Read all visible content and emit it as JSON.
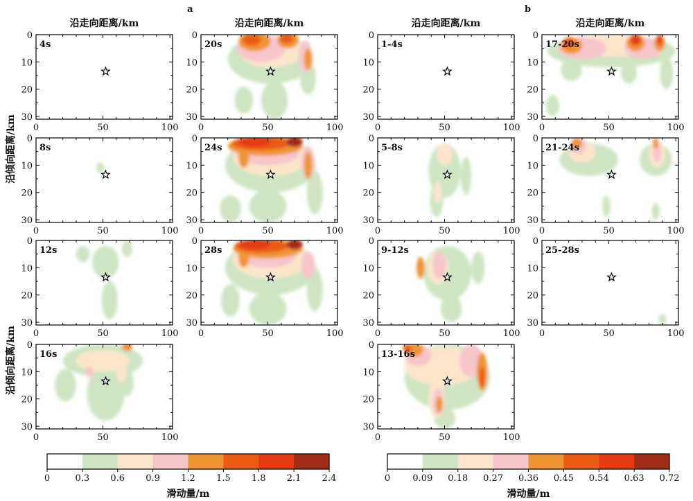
{
  "chart_data": {
    "type": "heatmap",
    "x_axis_label": "沿走向距离/km",
    "y_axis_label": "沿倾向距离/km",
    "colorbar_label": "滑动量/m",
    "xlim": [
      0,
      102
    ],
    "ylim": [
      0,
      31
    ],
    "y_inverted": true,
    "x_ticks": [
      "0",
      "50",
      "100"
    ],
    "y_ticks": [
      "0",
      "10",
      "20",
      "30"
    ],
    "hypocenter": {
      "x": 52,
      "y": 13.5,
      "symbol": "star"
    },
    "groups": [
      {
        "label": "a",
        "colorbar": {
          "ticks": [
            "0",
            "0.3",
            "0.6",
            "0.9",
            "1.2",
            "1.5",
            "1.8",
            "2.1",
            "2.4"
          ],
          "colors": [
            "#ffffff",
            "#cfe5c4",
            "#fbe6cc",
            "#f6c6cb",
            "#ef9434",
            "#ea5b16",
            "#e43c12",
            "#a02c1a"
          ]
        },
        "panels": [
          {
            "label": "4s",
            "patches": []
          },
          {
            "label": "8s",
            "patches": [
              {
                "x": 48,
                "y": 11,
                "rx": 3,
                "ry": 2,
                "level": 1
              }
            ]
          },
          {
            "label": "12s",
            "patches": [
              {
                "x": 52,
                "y": 8,
                "rx": 10,
                "ry": 6,
                "level": 1
              },
              {
                "x": 55,
                "y": 22,
                "rx": 6,
                "ry": 7,
                "level": 1
              },
              {
                "x": 35,
                "y": 5,
                "rx": 5,
                "ry": 3,
                "level": 1
              },
              {
                "x": 68,
                "y": 3,
                "rx": 4,
                "ry": 3,
                "level": 1
              }
            ]
          },
          {
            "label": "16s",
            "patches": [
              {
                "x": 50,
                "y": 6,
                "rx": 30,
                "ry": 6,
                "level": 1
              },
              {
                "x": 52,
                "y": 18,
                "rx": 14,
                "ry": 10,
                "level": 1
              },
              {
                "x": 22,
                "y": 15,
                "rx": 8,
                "ry": 6,
                "level": 1
              },
              {
                "x": 68,
                "y": 14,
                "rx": 5,
                "ry": 5,
                "level": 1
              },
              {
                "x": 50,
                "y": 6,
                "rx": 20,
                "ry": 4,
                "level": 2
              },
              {
                "x": 64,
                "y": 10,
                "rx": 4,
                "ry": 4,
                "level": 2
              },
              {
                "x": 40,
                "y": 10,
                "rx": 3,
                "ry": 2,
                "level": 3
              },
              {
                "x": 68,
                "y": 1,
                "rx": 4,
                "ry": 1.4,
                "level": 4
              }
            ]
          },
          {
            "label": "20s",
            "patches": [
              {
                "x": 52,
                "y": 9,
                "rx": 32,
                "ry": 9,
                "level": 1
              },
              {
                "x": 55,
                "y": 24,
                "rx": 10,
                "ry": 7,
                "level": 1
              },
              {
                "x": 32,
                "y": 24,
                "rx": 7,
                "ry": 5,
                "level": 1
              },
              {
                "x": 80,
                "y": 16,
                "rx": 6,
                "ry": 6,
                "level": 1
              },
              {
                "x": 52,
                "y": 6,
                "rx": 24,
                "ry": 6,
                "level": 2
              },
              {
                "x": 45,
                "y": 5,
                "rx": 18,
                "ry": 5,
                "level": 3
              },
              {
                "x": 78,
                "y": 8,
                "rx": 5,
                "ry": 6,
                "level": 3
              },
              {
                "x": 40,
                "y": 2.5,
                "rx": 12,
                "ry": 3.5,
                "level": 4
              },
              {
                "x": 65,
                "y": 2,
                "rx": 8,
                "ry": 3,
                "level": 4
              },
              {
                "x": 80,
                "y": 9,
                "rx": 3,
                "ry": 4,
                "level": 4
              },
              {
                "x": 38,
                "y": 2,
                "rx": 7,
                "ry": 2,
                "level": 5
              },
              {
                "x": 64,
                "y": 1.5,
                "rx": 5,
                "ry": 1.8,
                "level": 5
              }
            ]
          },
          {
            "label": "24s",
            "patches": [
              {
                "x": 52,
                "y": 10,
                "rx": 34,
                "ry": 10,
                "level": 1
              },
              {
                "x": 50,
                "y": 25,
                "rx": 14,
                "ry": 6,
                "level": 1
              },
              {
                "x": 22,
                "y": 26,
                "rx": 8,
                "ry": 5,
                "level": 1
              },
              {
                "x": 85,
                "y": 20,
                "rx": 6,
                "ry": 8,
                "level": 1
              },
              {
                "x": 52,
                "y": 7,
                "rx": 28,
                "ry": 7,
                "level": 2
              },
              {
                "x": 50,
                "y": 5,
                "rx": 24,
                "ry": 5,
                "level": 3
              },
              {
                "x": 80,
                "y": 9,
                "rx": 5,
                "ry": 6,
                "level": 3
              },
              {
                "x": 48,
                "y": 3,
                "rx": 28,
                "ry": 3.5,
                "level": 4
              },
              {
                "x": 32,
                "y": 7,
                "rx": 4,
                "ry": 4,
                "level": 4
              },
              {
                "x": 80,
                "y": 10,
                "rx": 3,
                "ry": 5,
                "level": 4
              },
              {
                "x": 45,
                "y": 2,
                "rx": 22,
                "ry": 2.5,
                "level": 5
              },
              {
                "x": 40,
                "y": 1.5,
                "rx": 12,
                "ry": 1.8,
                "level": 6
              },
              {
                "x": 70,
                "y": 1.5,
                "rx": 6,
                "ry": 1.8,
                "level": 7
              }
            ]
          },
          {
            "label": "28s",
            "patches": [
              {
                "x": 52,
                "y": 10,
                "rx": 34,
                "ry": 10,
                "level": 1
              },
              {
                "x": 50,
                "y": 25,
                "rx": 14,
                "ry": 6,
                "level": 1
              },
              {
                "x": 22,
                "y": 22,
                "rx": 7,
                "ry": 6,
                "level": 1
              },
              {
                "x": 85,
                "y": 18,
                "rx": 6,
                "ry": 8,
                "level": 1
              },
              {
                "x": 52,
                "y": 7,
                "rx": 28,
                "ry": 7,
                "level": 2
              },
              {
                "x": 50,
                "y": 5,
                "rx": 22,
                "ry": 5,
                "level": 3
              },
              {
                "x": 80,
                "y": 9,
                "rx": 5,
                "ry": 5,
                "level": 3
              },
              {
                "x": 50,
                "y": 3,
                "rx": 26,
                "ry": 3.5,
                "level": 4
              },
              {
                "x": 32,
                "y": 6,
                "rx": 4,
                "ry": 4,
                "level": 4
              },
              {
                "x": 45,
                "y": 2,
                "rx": 20,
                "ry": 2.5,
                "level": 5
              },
              {
                "x": 40,
                "y": 1.5,
                "rx": 12,
                "ry": 1.8,
                "level": 6
              },
              {
                "x": 70,
                "y": 1.5,
                "rx": 6,
                "ry": 1.8,
                "level": 7
              }
            ]
          }
        ]
      },
      {
        "label": "b",
        "colorbar": {
          "ticks": [
            "0",
            "0.09",
            "0.18",
            "0.27",
            "0.36",
            "0.45",
            "0.54",
            "0.63",
            "0.72"
          ],
          "colors": [
            "#ffffff",
            "#cfe5c4",
            "#fbe6cc",
            "#f6c6cb",
            "#ef9434",
            "#ea5b16",
            "#e43c12",
            "#a02c1a"
          ]
        },
        "panels": [
          {
            "label": "1-4s",
            "patches": []
          },
          {
            "label": "5-8s",
            "patches": [
              {
                "x": 50,
                "y": 12,
                "rx": 12,
                "ry": 10,
                "level": 1
              },
              {
                "x": 66,
                "y": 14,
                "rx": 4,
                "ry": 7,
                "level": 1
              },
              {
                "x": 44,
                "y": 23,
                "rx": 5,
                "ry": 6,
                "level": 1
              },
              {
                "x": 50,
                "y": 6,
                "rx": 6,
                "ry": 4,
                "level": 2
              },
              {
                "x": 45,
                "y": 20,
                "rx": 3,
                "ry": 4,
                "level": 2
              }
            ]
          },
          {
            "label": "9-12s",
            "patches": [
              {
                "x": 52,
                "y": 12,
                "rx": 18,
                "ry": 10,
                "level": 1
              },
              {
                "x": 55,
                "y": 25,
                "rx": 8,
                "ry": 5,
                "level": 1
              },
              {
                "x": 75,
                "y": 10,
                "rx": 5,
                "ry": 6,
                "level": 1
              },
              {
                "x": 45,
                "y": 10,
                "rx": 8,
                "ry": 6,
                "level": 2
              },
              {
                "x": 46,
                "y": 9,
                "rx": 5,
                "ry": 5,
                "level": 3
              },
              {
                "x": 32,
                "y": 10,
                "rx": 3,
                "ry": 4,
                "level": 4
              }
            ]
          },
          {
            "label": "13-16s",
            "patches": [
              {
                "x": 52,
                "y": 12,
                "rx": 32,
                "ry": 12,
                "level": 1
              },
              {
                "x": 50,
                "y": 27,
                "rx": 8,
                "ry": 4,
                "level": 1
              },
              {
                "x": 48,
                "y": 8,
                "rx": 28,
                "ry": 7,
                "level": 2
              },
              {
                "x": 44,
                "y": 20,
                "rx": 6,
                "ry": 7,
                "level": 2
              },
              {
                "x": 30,
                "y": 4,
                "rx": 10,
                "ry": 4,
                "level": 3
              },
              {
                "x": 70,
                "y": 6,
                "rx": 9,
                "ry": 6,
                "level": 3
              },
              {
                "x": 45,
                "y": 21,
                "rx": 4,
                "ry": 5,
                "level": 3
              },
              {
                "x": 28,
                "y": 2,
                "rx": 6,
                "ry": 2.5,
                "level": 4
              },
              {
                "x": 78,
                "y": 10,
                "rx": 4,
                "ry": 7,
                "level": 4
              },
              {
                "x": 46,
                "y": 22,
                "rx": 2.5,
                "ry": 3,
                "level": 4
              },
              {
                "x": 22,
                "y": 1.5,
                "rx": 3,
                "ry": 1.5,
                "level": 5
              },
              {
                "x": 78,
                "y": 12,
                "rx": 2,
                "ry": 4,
                "level": 5
              }
            ]
          },
          {
            "label": "17-20s",
            "patches": [
              {
                "x": 52,
                "y": 6,
                "rx": 48,
                "ry": 6,
                "level": 1
              },
              {
                "x": 22,
                "y": 13,
                "rx": 8,
                "ry": 4,
                "level": 1
              },
              {
                "x": 8,
                "y": 26,
                "rx": 5,
                "ry": 4,
                "level": 1
              },
              {
                "x": 65,
                "y": 14,
                "rx": 6,
                "ry": 4,
                "level": 1
              },
              {
                "x": 93,
                "y": 14,
                "rx": 5,
                "ry": 6,
                "level": 1
              },
              {
                "x": 52,
                "y": 4,
                "rx": 40,
                "ry": 4,
                "level": 2
              },
              {
                "x": 30,
                "y": 5,
                "rx": 18,
                "ry": 4,
                "level": 3
              },
              {
                "x": 76,
                "y": 5,
                "rx": 14,
                "ry": 4,
                "level": 3
              },
              {
                "x": 22,
                "y": 4,
                "rx": 8,
                "ry": 3,
                "level": 4
              },
              {
                "x": 70,
                "y": 3,
                "rx": 7,
                "ry": 3,
                "level": 4
              },
              {
                "x": 88,
                "y": 3,
                "rx": 4,
                "ry": 3,
                "level": 4
              },
              {
                "x": 20,
                "y": 3,
                "rx": 4,
                "ry": 2,
                "level": 5
              },
              {
                "x": 70,
                "y": 2,
                "rx": 4,
                "ry": 2,
                "level": 6
              },
              {
                "x": 88,
                "y": 2,
                "rx": 2,
                "ry": 2,
                "level": 6
              }
            ]
          },
          {
            "label": "21-24s",
            "patches": [
              {
                "x": 35,
                "y": 8,
                "rx": 22,
                "ry": 6,
                "level": 1
              },
              {
                "x": 85,
                "y": 8,
                "rx": 12,
                "ry": 6,
                "level": 1
              },
              {
                "x": 48,
                "y": 25,
                "rx": 3,
                "ry": 4,
                "level": 1
              },
              {
                "x": 85,
                "y": 27,
                "rx": 3,
                "ry": 3,
                "level": 1
              },
              {
                "x": 30,
                "y": 5,
                "rx": 10,
                "ry": 4,
                "level": 2
              },
              {
                "x": 86,
                "y": 6,
                "rx": 6,
                "ry": 5,
                "level": 2
              },
              {
                "x": 27,
                "y": 3,
                "rx": 6,
                "ry": 3,
                "level": 3
              },
              {
                "x": 86,
                "y": 5,
                "rx": 3,
                "ry": 4,
                "level": 3
              },
              {
                "x": 26,
                "y": 2,
                "rx": 4,
                "ry": 1.8,
                "level": 4
              },
              {
                "x": 85,
                "y": 2,
                "rx": 2,
                "ry": 2,
                "level": 4
              }
            ]
          },
          {
            "label": "25-28s",
            "patches": [
              {
                "x": 90,
                "y": 29,
                "rx": 3,
                "ry": 2,
                "level": 1
              }
            ]
          }
        ]
      }
    ]
  }
}
